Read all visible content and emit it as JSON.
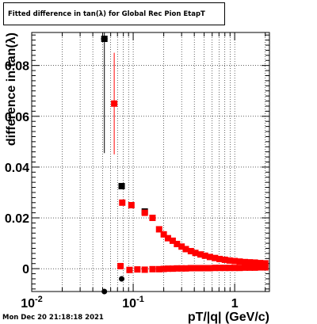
{
  "title": "Fitted difference in tan(λ) for Global Rec Pion EtapT",
  "footer": "Mon Dec 20 21:18:18 2021",
  "chart_data": {
    "type": "scatter",
    "title": "Fitted difference in tan(λ) for Global Rec Pion EtapT",
    "xlabel": "pT/|q| (GeV/c)",
    "ylabel": "difference in tan(λ)",
    "xscale": "log",
    "xlim": [
      0.01,
      2.2
    ],
    "ylim": [
      -0.009,
      0.093
    ],
    "grid": true,
    "x_tick_labels": [
      {
        "x": 0.01,
        "label": "10",
        "sup": "-2"
      },
      {
        "x": 0.1,
        "label": "10",
        "sup": "-1"
      },
      {
        "x": 1,
        "label": "1",
        "sup": ""
      }
    ],
    "y_tick_labels": [
      {
        "y": 0,
        "label": "0"
      },
      {
        "y": 0.02,
        "label": "0.02"
      },
      {
        "y": 0.04,
        "label": "0.04"
      },
      {
        "y": 0.06,
        "label": "0.06"
      },
      {
        "y": 0.08,
        "label": "0.08"
      }
    ],
    "series": [
      {
        "color": "#000000",
        "marker": "square",
        "points": [
          {
            "x": 0.052,
            "y": 0.0905,
            "yerr": 0.045,
            "xerr": 0.004
          },
          {
            "x": 0.077,
            "y": 0.0325
          },
          {
            "x": 0.13,
            "y": 0.0225,
            "xerr": 0.008
          },
          {
            "x": 1.6,
            "y": 0.0015
          }
        ]
      },
      {
        "color": "#000000",
        "marker": "circle",
        "points": [
          {
            "x": 0.052,
            "y": -0.009,
            "xerr": 0.004
          },
          {
            "x": 0.077,
            "y": -0.004
          }
        ]
      },
      {
        "color": "#ff0000",
        "marker": "square",
        "points": [
          {
            "x": 0.065,
            "y": 0.065,
            "yerr": 0.02
          },
          {
            "x": 0.078,
            "y": 0.026
          },
          {
            "x": 0.096,
            "y": 0.025
          },
          {
            "x": 0.13,
            "y": 0.022
          },
          {
            "x": 0.155,
            "y": 0.02
          },
          {
            "x": 0.18,
            "y": 0.0155
          },
          {
            "x": 0.2,
            "y": 0.0135
          },
          {
            "x": 0.22,
            "y": 0.012
          },
          {
            "x": 0.245,
            "y": 0.011
          },
          {
            "x": 0.27,
            "y": 0.0097
          },
          {
            "x": 0.3,
            "y": 0.0087
          },
          {
            "x": 0.33,
            "y": 0.0077
          },
          {
            "x": 0.37,
            "y": 0.0069
          },
          {
            "x": 0.41,
            "y": 0.0062
          },
          {
            "x": 0.46,
            "y": 0.0056
          },
          {
            "x": 0.51,
            "y": 0.0051
          },
          {
            "x": 0.57,
            "y": 0.0046
          },
          {
            "x": 0.64,
            "y": 0.0042
          },
          {
            "x": 0.71,
            "y": 0.0038
          },
          {
            "x": 0.8,
            "y": 0.0035
          },
          {
            "x": 0.89,
            "y": 0.0032
          },
          {
            "x": 1.0,
            "y": 0.003
          },
          {
            "x": 1.12,
            "y": 0.0028
          },
          {
            "x": 1.26,
            "y": 0.0026
          },
          {
            "x": 1.41,
            "y": 0.0025
          },
          {
            "x": 1.58,
            "y": 0.0024
          },
          {
            "x": 1.78,
            "y": 0.0022
          },
          {
            "x": 2.0,
            "y": 0.0021
          }
        ]
      },
      {
        "color": "#ff0000",
        "marker": "square",
        "points": [
          {
            "x": 0.075,
            "y": 0.001
          },
          {
            "x": 0.092,
            "y": -0.0005
          },
          {
            "x": 0.11,
            "y": -0.0003
          },
          {
            "x": 0.13,
            "y": -0.0004
          },
          {
            "x": 0.155,
            "y": -0.0002
          },
          {
            "x": 0.18,
            "y": -0.0002
          },
          {
            "x": 0.2,
            "y": -0.0001
          },
          {
            "x": 0.22,
            "y": 0.0
          },
          {
            "x": 0.245,
            "y": 0.0
          },
          {
            "x": 0.27,
            "y": 0.0001
          },
          {
            "x": 0.3,
            "y": 0.0001
          },
          {
            "x": 0.33,
            "y": 0.0001
          },
          {
            "x": 0.37,
            "y": 0.0002
          },
          {
            "x": 0.41,
            "y": 0.0002
          },
          {
            "x": 0.46,
            "y": 0.0002
          },
          {
            "x": 0.51,
            "y": 0.0002
          },
          {
            "x": 0.57,
            "y": 0.0002
          },
          {
            "x": 0.64,
            "y": 0.0003
          },
          {
            "x": 0.71,
            "y": 0.0003
          },
          {
            "x": 0.8,
            "y": 0.0003
          },
          {
            "x": 0.89,
            "y": 0.0003
          },
          {
            "x": 1.0,
            "y": 0.0003
          },
          {
            "x": 1.12,
            "y": 0.0003
          },
          {
            "x": 1.26,
            "y": 0.0004
          },
          {
            "x": 1.41,
            "y": 0.0004
          },
          {
            "x": 1.58,
            "y": 0.0004
          },
          {
            "x": 1.78,
            "y": 0.0005
          },
          {
            "x": 2.0,
            "y": 0.0005
          }
        ]
      }
    ]
  }
}
